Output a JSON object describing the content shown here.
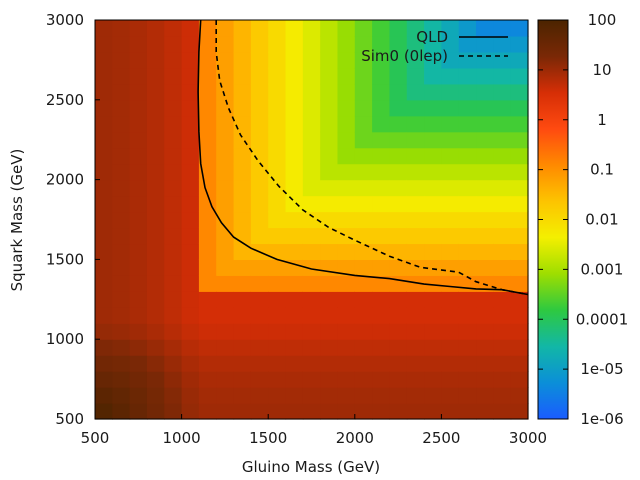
{
  "chart_data": {
    "type": "heatmap",
    "xlabel": "Gluino Mass (GeV)",
    "ylabel": "Squark Mass (GeV)",
    "xlim": [
      500,
      3000
    ],
    "ylim": [
      500,
      3000
    ],
    "x_ticks": [
      500,
      1000,
      1500,
      2000,
      2500,
      3000
    ],
    "y_ticks": [
      500,
      1000,
      1500,
      2000,
      2500,
      3000
    ],
    "colorbar": {
      "scale": "log",
      "range": [
        1e-06,
        100
      ],
      "ticks": [
        "100",
        "10",
        "1",
        "0.1",
        "0.01",
        "0.001",
        "0.0001",
        "1e-05",
        "1e-06"
      ],
      "tick_values": [
        100,
        10,
        1,
        0.1,
        0.01,
        0.001,
        0.0001,
        1e-05,
        1e-06
      ],
      "palette": [
        "#1a5cff",
        "#0b8fd8",
        "#12b7a6",
        "#2ec940",
        "#9ede00",
        "#f4ef00",
        "#fdc400",
        "#ff8a00",
        "#ff4a10",
        "#d62e06",
        "#7a2806",
        "#4b2400"
      ]
    },
    "grid": {
      "x_step": 100,
      "y_step": 100,
      "note": "cell value (log10) approximated from the colour of each mass cell"
    },
    "series": [
      {
        "name": "QLD",
        "style": "solid",
        "x": [
          1110,
          1100,
          1095,
          1100,
          1110,
          1135,
          1175,
          1230,
          1300,
          1400,
          1550,
          1750,
          2000,
          2200,
          2400,
          2550,
          2700,
          2850,
          3000
        ],
        "y": [
          3000,
          2800,
          2550,
          2300,
          2100,
          1950,
          1830,
          1730,
          1640,
          1570,
          1500,
          1440,
          1400,
          1380,
          1345,
          1330,
          1315,
          1310,
          1280
        ]
      },
      {
        "name": "Sim0 (0lep)",
        "style": "dashed",
        "x": [
          1200,
          1200,
          1220,
          1270,
          1340,
          1440,
          1560,
          1700,
          1850,
          2000,
          2200,
          2380,
          2600,
          2700,
          2850,
          3000
        ],
        "y": [
          3000,
          2800,
          2620,
          2450,
          2280,
          2120,
          1960,
          1810,
          1700,
          1620,
          1520,
          1450,
          1420,
          1360,
          1310,
          1280
        ]
      }
    ]
  }
}
